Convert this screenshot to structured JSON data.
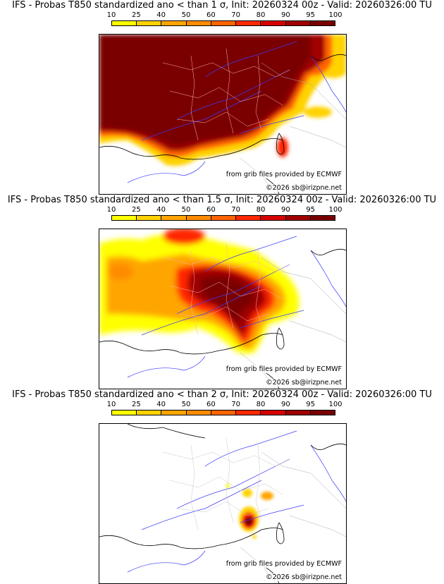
{
  "colorbar": {
    "ticks": [
      "10",
      "25",
      "40",
      "50",
      "60",
      "70",
      "80",
      "90",
      "95",
      "100"
    ],
    "colors": [
      "#ffff00",
      "#ffd200",
      "#ffa500",
      "#ff8c00",
      "#ff6400",
      "#ff2800",
      "#d70000",
      "#a00000",
      "#7a0000"
    ]
  },
  "panels": [
    {
      "title": "IFS - Probas T850  standardized ano < than 1 σ, Init: 20260324 00z - Valid: 20260326:00 TU",
      "source_note": "from grib files provided by ECMWF",
      "copyright": "©2026 sb@irizpne.net",
      "coverage": "high"
    },
    {
      "title": "IFS - Probas T850  standardized ano < than 1.5 σ, Init: 20260324 00z - Valid: 20260326:00 TU",
      "source_note": "from grib files provided by ECMWF",
      "copyright": "©2026 sb@irizpne.net",
      "coverage": "medium"
    },
    {
      "title": "IFS - Probas T850  standardized ano < than 2 σ, Init: 20260324 00z - Valid: 20260326:00 TU",
      "source_note": "from grib files provided by ECMWF",
      "copyright": "©2026 sb@irizpne.net",
      "coverage": "low"
    }
  ]
}
